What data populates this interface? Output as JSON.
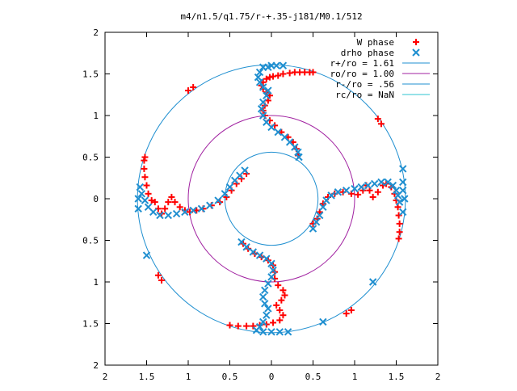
{
  "chart_data": {
    "type": "scatter",
    "title": "m4/n1.5/q1.75/r-+.35-j181/M0.1/512",
    "xlabel": "",
    "ylabel": "",
    "xlim": [
      -2,
      2
    ],
    "ylim": [
      -2,
      2
    ],
    "grid": false,
    "legend_placement": "top-right",
    "x_ticks": [
      {
        "value": -2,
        "label": "2"
      },
      {
        "value": -1.5,
        "label": "1.5"
      },
      {
        "value": -1,
        "label": "1"
      },
      {
        "value": -0.5,
        "label": "0.5"
      },
      {
        "value": 0,
        "label": "0"
      },
      {
        "value": 0.5,
        "label": "0.5"
      },
      {
        "value": 1,
        "label": "1"
      },
      {
        "value": 1.5,
        "label": "1.5"
      },
      {
        "value": 2,
        "label": "2"
      }
    ],
    "y_ticks": [
      {
        "value": 2,
        "label": "2"
      },
      {
        "value": 1.5,
        "label": "1.5"
      },
      {
        "value": 1,
        "label": "1"
      },
      {
        "value": 0.5,
        "label": "0.5"
      },
      {
        "value": 0,
        "label": "0"
      },
      {
        "value": -0.5,
        "label": "0.5"
      },
      {
        "value": -1,
        "label": "1"
      },
      {
        "value": -1.5,
        "label": "1.5"
      },
      {
        "value": -2,
        "label": "2"
      }
    ],
    "circles": [
      {
        "name": "r+/ro = 1.61",
        "radius": 1.61,
        "color": "#1f8fd0"
      },
      {
        "name": "ro/ro = 1.00",
        "radius": 1.0,
        "color": "#a020a0"
      },
      {
        "name": "r-/ro = .56",
        "radius": 0.56,
        "color": "#1f8fd0"
      },
      {
        "name": "rc/ro = NaN",
        "radius": null,
        "color": "#2ec4d0"
      }
    ],
    "series": [
      {
        "name": "W phase",
        "marker": "+",
        "color": "#ff0000",
        "points": [
          [
            0.28,
            1.52
          ],
          [
            0.34,
            1.52
          ],
          [
            0.4,
            1.52
          ],
          [
            0.46,
            1.52
          ],
          [
            0.5,
            1.52
          ],
          [
            0.22,
            1.51
          ],
          [
            0.14,
            1.5
          ],
          [
            0.08,
            1.48
          ],
          [
            0.02,
            1.47
          ],
          [
            -0.02,
            1.46
          ],
          [
            -0.06,
            1.44
          ],
          [
            -0.1,
            1.4
          ],
          [
            -0.12,
            1.36
          ],
          [
            -0.1,
            1.32
          ],
          [
            -0.06,
            1.28
          ],
          [
            -0.02,
            1.24
          ],
          [
            -0.04,
            1.18
          ],
          [
            -0.08,
            1.12
          ],
          [
            -0.1,
            1.06
          ],
          [
            -0.08,
            1.0
          ],
          [
            -0.02,
            0.94
          ],
          [
            0.04,
            0.88
          ],
          [
            0.12,
            0.8
          ],
          [
            0.2,
            0.74
          ],
          [
            0.26,
            0.68
          ],
          [
            0.3,
            0.6
          ],
          [
            0.32,
            0.52
          ],
          [
            0.5,
            -0.3
          ],
          [
            0.55,
            -0.24
          ],
          [
            0.58,
            -0.16
          ],
          [
            0.62,
            -0.06
          ],
          [
            0.68,
            0.02
          ],
          [
            0.76,
            0.06
          ],
          [
            0.86,
            0.08
          ],
          [
            0.96,
            0.06
          ],
          [
            1.04,
            0.05
          ],
          [
            1.1,
            0.1
          ],
          [
            1.14,
            0.16
          ],
          [
            1.18,
            0.1
          ],
          [
            1.22,
            0.02
          ],
          [
            1.28,
            0.08
          ],
          [
            1.34,
            0.16
          ],
          [
            1.38,
            0.18
          ],
          [
            1.44,
            0.14
          ],
          [
            1.48,
            0.06
          ],
          [
            1.5,
            -0.02
          ],
          [
            1.52,
            -0.1
          ],
          [
            1.53,
            -0.2
          ],
          [
            1.54,
            -0.3
          ],
          [
            1.54,
            -0.4
          ],
          [
            1.53,
            -0.48
          ],
          [
            1.28,
            0.96
          ],
          [
            1.32,
            0.9
          ],
          [
            -1.0,
            1.3
          ],
          [
            -0.94,
            1.34
          ],
          [
            -0.3,
            0.3
          ],
          [
            -0.36,
            0.24
          ],
          [
            -0.42,
            0.18
          ],
          [
            -0.48,
            0.1
          ],
          [
            -0.54,
            0.02
          ],
          [
            -0.62,
            -0.04
          ],
          [
            -0.72,
            -0.08
          ],
          [
            -0.82,
            -0.12
          ],
          [
            -0.9,
            -0.14
          ],
          [
            -0.98,
            -0.16
          ],
          [
            -1.04,
            -0.14
          ],
          [
            -1.1,
            -0.1
          ],
          [
            -1.16,
            -0.04
          ],
          [
            -1.2,
            0.02
          ],
          [
            -1.24,
            -0.04
          ],
          [
            -1.28,
            -0.12
          ],
          [
            -1.32,
            -0.18
          ],
          [
            -1.36,
            -0.12
          ],
          [
            -1.4,
            -0.04
          ],
          [
            -1.44,
            -0.02
          ],
          [
            -1.48,
            0.06
          ],
          [
            -1.5,
            0.16
          ],
          [
            -1.52,
            0.26
          ],
          [
            -1.53,
            0.36
          ],
          [
            -1.53,
            0.46
          ],
          [
            -1.52,
            0.5
          ],
          [
            -0.34,
            -0.54
          ],
          [
            -0.28,
            -0.6
          ],
          [
            -0.2,
            -0.66
          ],
          [
            -0.12,
            -0.7
          ],
          [
            -0.04,
            -0.74
          ],
          [
            0.02,
            -0.8
          ],
          [
            0.04,
            -0.88
          ],
          [
            0.04,
            -0.96
          ],
          [
            0.08,
            -1.04
          ],
          [
            0.14,
            -1.1
          ],
          [
            0.16,
            -1.16
          ],
          [
            0.12,
            -1.22
          ],
          [
            0.06,
            -1.28
          ],
          [
            0.1,
            -1.34
          ],
          [
            0.14,
            -1.4
          ],
          [
            0.1,
            -1.46
          ],
          [
            0.02,
            -1.49
          ],
          [
            -0.06,
            -1.51
          ],
          [
            -0.14,
            -1.52
          ],
          [
            -0.22,
            -1.53
          ],
          [
            -0.3,
            -1.53
          ],
          [
            -0.4,
            -1.53
          ],
          [
            -0.5,
            -1.52
          ],
          [
            -1.36,
            -0.92
          ],
          [
            -1.32,
            -0.98
          ],
          [
            0.96,
            -1.34
          ],
          [
            0.9,
            -1.38
          ]
        ]
      },
      {
        "name": "drho phase",
        "marker": "x",
        "color": "#1f8fd0",
        "points": [
          [
            -0.1,
            1.58
          ],
          [
            -0.14,
            1.52
          ],
          [
            -0.16,
            1.46
          ],
          [
            -0.14,
            1.4
          ],
          [
            -0.1,
            1.34
          ],
          [
            -0.04,
            1.3
          ],
          [
            -0.06,
            1.24
          ],
          [
            -0.1,
            1.16
          ],
          [
            -0.12,
            1.08
          ],
          [
            -0.1,
            1.0
          ],
          [
            -0.06,
            0.92
          ],
          [
            0.0,
            0.86
          ],
          [
            0.08,
            0.8
          ],
          [
            0.16,
            0.74
          ],
          [
            0.22,
            0.68
          ],
          [
            0.28,
            0.62
          ],
          [
            0.32,
            0.56
          ],
          [
            0.33,
            0.5
          ],
          [
            0.0,
            1.6
          ],
          [
            0.06,
            1.6
          ],
          [
            0.14,
            1.6
          ],
          [
            -0.04,
            1.58
          ],
          [
            0.5,
            -0.36
          ],
          [
            0.54,
            -0.28
          ],
          [
            0.58,
            -0.2
          ],
          [
            0.62,
            -0.1
          ],
          [
            0.66,
            -0.02
          ],
          [
            0.72,
            0.04
          ],
          [
            0.8,
            0.08
          ],
          [
            0.9,
            0.1
          ],
          [
            1.0,
            0.12
          ],
          [
            1.08,
            0.14
          ],
          [
            1.16,
            0.16
          ],
          [
            1.24,
            0.18
          ],
          [
            1.32,
            0.2
          ],
          [
            1.4,
            0.2
          ],
          [
            1.46,
            0.16
          ],
          [
            1.5,
            0.1
          ],
          [
            1.52,
            0.04
          ],
          [
            1.54,
            -0.04
          ],
          [
            1.58,
            0.1
          ],
          [
            1.58,
            0.2
          ],
          [
            1.6,
            0.0
          ],
          [
            1.58,
            -0.16
          ],
          [
            -0.32,
            0.34
          ],
          [
            -0.38,
            0.28
          ],
          [
            -0.44,
            0.22
          ],
          [
            -0.5,
            0.14
          ],
          [
            -0.56,
            0.06
          ],
          [
            -0.64,
            -0.02
          ],
          [
            -0.74,
            -0.08
          ],
          [
            -0.84,
            -0.12
          ],
          [
            -0.94,
            -0.14
          ],
          [
            -1.04,
            -0.16
          ],
          [
            -1.14,
            -0.18
          ],
          [
            -1.24,
            -0.2
          ],
          [
            -1.34,
            -0.2
          ],
          [
            -1.42,
            -0.16
          ],
          [
            -1.48,
            -0.1
          ],
          [
            -1.52,
            -0.02
          ],
          [
            -1.56,
            0.06
          ],
          [
            -1.58,
            0.14
          ],
          [
            -1.6,
            0.0
          ],
          [
            -1.6,
            -0.12
          ],
          [
            -0.36,
            -0.52
          ],
          [
            -0.3,
            -0.58
          ],
          [
            -0.22,
            -0.64
          ],
          [
            -0.14,
            -0.68
          ],
          [
            -0.06,
            -0.72
          ],
          [
            0.0,
            -0.78
          ],
          [
            0.02,
            -0.86
          ],
          [
            0.0,
            -0.94
          ],
          [
            -0.04,
            -1.02
          ],
          [
            -0.08,
            -1.1
          ],
          [
            -0.1,
            -1.18
          ],
          [
            -0.08,
            -1.26
          ],
          [
            -0.04,
            -1.32
          ],
          [
            -0.06,
            -1.4
          ],
          [
            -0.1,
            -1.48
          ],
          [
            -0.14,
            -1.54
          ],
          [
            -0.18,
            -1.58
          ],
          [
            -0.1,
            -1.6
          ],
          [
            0.0,
            -1.6
          ],
          [
            0.1,
            -1.6
          ],
          [
            0.2,
            -1.6
          ],
          [
            1.58,
            0.36
          ],
          [
            0.62,
            -1.48
          ],
          [
            -1.5,
            -0.68
          ],
          [
            1.22,
            -1.0
          ]
        ]
      }
    ]
  }
}
